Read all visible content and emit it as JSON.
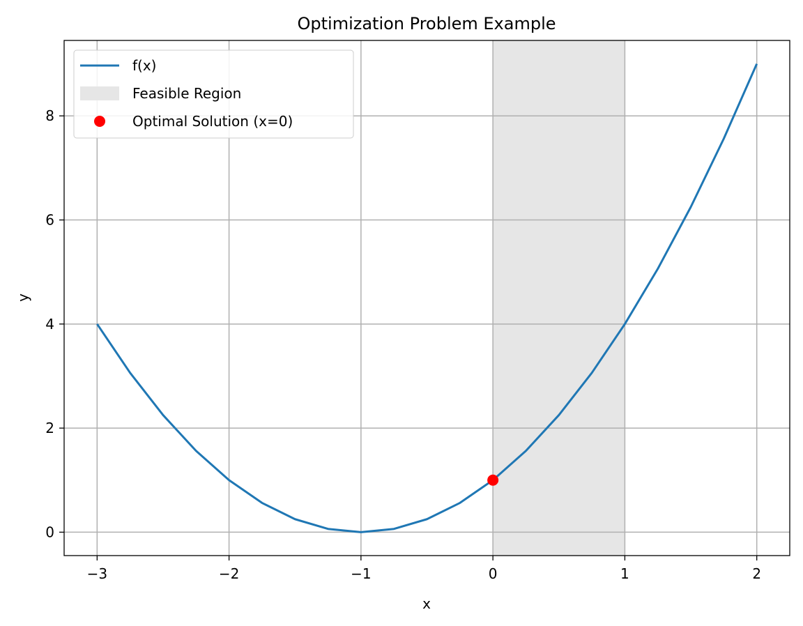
{
  "chart_data": {
    "type": "line",
    "title": "Optimization Problem Example",
    "xlabel": "x",
    "ylabel": "y",
    "xlim": [
      -3.25,
      2.25
    ],
    "ylim": [
      -0.45,
      9.45
    ],
    "xticks": [
      -3,
      -2,
      -1,
      0,
      1,
      2
    ],
    "xtick_labels": [
      "−3",
      "−2",
      "−1",
      "0",
      "1",
      "2"
    ],
    "yticks": [
      0,
      2,
      4,
      6,
      8
    ],
    "ytick_labels": [
      "0",
      "2",
      "4",
      "6",
      "8"
    ],
    "grid": true,
    "legend_position": "upper-left",
    "series": [
      {
        "name": "f(x)",
        "color": "#1f77b4",
        "x": [
          -3,
          -2.75,
          -2.5,
          -2.25,
          -2,
          -1.75,
          -1.5,
          -1.25,
          -1,
          -0.75,
          -0.5,
          -0.25,
          0,
          0.25,
          0.5,
          0.75,
          1,
          1.25,
          1.5,
          1.75,
          2
        ],
        "y": [
          4,
          3.0625,
          2.25,
          1.5625,
          1,
          0.5625,
          0.25,
          0.0625,
          0,
          0.0625,
          0.25,
          0.5625,
          1,
          1.5625,
          2.25,
          3.0625,
          4,
          5.0625,
          6.25,
          7.5625,
          9
        ]
      }
    ],
    "region": {
      "name": "Feasible Region",
      "x_start": 0,
      "x_end": 1,
      "color": "#e6e6e6"
    },
    "point": {
      "name": "Optimal Solution (x=0)",
      "x": 0,
      "y": 1,
      "color": "#ff0000"
    }
  }
}
